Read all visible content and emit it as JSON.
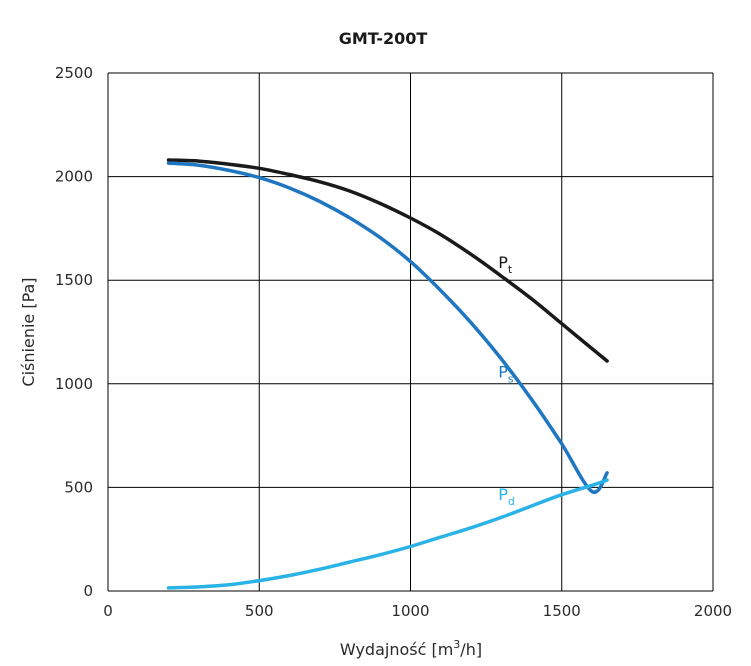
{
  "chart_data": {
    "type": "line",
    "title": "GMT-200T",
    "xlabel_main": "Wydajność [m",
    "xlabel_sup": "3",
    "xlabel_end": "/h]",
    "ylabel": "Ciśnienie [Pa]",
    "xlim": [
      0,
      2000
    ],
    "ylim": [
      0,
      2500
    ],
    "x_ticks": [
      0,
      500,
      1000,
      1500,
      2000
    ],
    "x_tick_labels": [
      "0",
      "500",
      "1000",
      "1500",
      "2000"
    ],
    "y_ticks": [
      0,
      500,
      1000,
      1500,
      2000,
      2500
    ],
    "y_tick_labels": [
      "0",
      "500",
      "1000",
      "1500",
      "2000",
      "2500"
    ],
    "grid": true,
    "series": [
      {
        "name": "Pt",
        "label_main": "P",
        "label_sub": "t",
        "color": "#1a1a1a",
        "label_at": [
          1290,
          1560
        ],
        "x": [
          200,
          300,
          400,
          500,
          600,
          700,
          800,
          900,
          1000,
          1100,
          1200,
          1300,
          1400,
          1500,
          1600,
          1650
        ],
        "y": [
          2080,
          2075,
          2060,
          2040,
          2010,
          1975,
          1930,
          1870,
          1800,
          1720,
          1625,
          1520,
          1410,
          1290,
          1170,
          1110
        ]
      },
      {
        "name": "Ps",
        "label_main": "P",
        "label_sub": "s",
        "color": "#1f77c2",
        "label_at": [
          1290,
          1030
        ],
        "x": [
          200,
          300,
          400,
          500,
          600,
          700,
          800,
          900,
          1000,
          1100,
          1200,
          1300,
          1400,
          1500,
          1600,
          1650
        ],
        "y": [
          2065,
          2055,
          2030,
          1995,
          1945,
          1880,
          1800,
          1705,
          1590,
          1450,
          1295,
          1120,
          925,
          710,
          480,
          570
        ]
      },
      {
        "name": "Pd",
        "label_main": "P",
        "label_sub": "d",
        "color": "#2ab3e6",
        "label_at": [
          1290,
          440
        ],
        "x": [
          200,
          300,
          400,
          500,
          600,
          700,
          800,
          900,
          1000,
          1100,
          1200,
          1300,
          1400,
          1500,
          1600,
          1650
        ],
        "y": [
          15,
          20,
          30,
          50,
          75,
          105,
          140,
          175,
          215,
          260,
          305,
          355,
          410,
          465,
          510,
          535
        ]
      }
    ]
  }
}
